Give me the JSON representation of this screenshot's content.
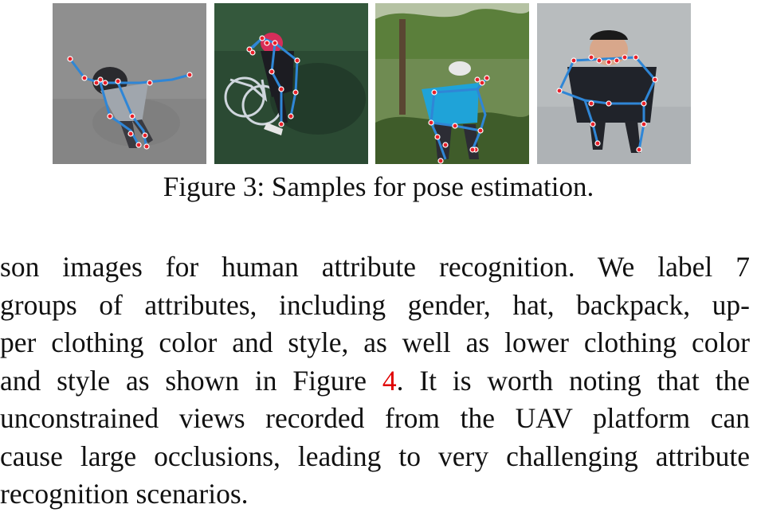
{
  "figure": {
    "label": "Figure 3:",
    "caption": "Samples for pose estimation."
  },
  "paragraph": {
    "line1": "son images for human attribute recognition.  We label 7",
    "line2": "groups of attributes, including gender, hat, backpack, up-",
    "line3": "per clothing color and style, as well as lower clothing color",
    "line4_before": "and style as shown in Figure ",
    "line4_ref": "4",
    "line4_after": ".  It is worth noting that the",
    "line5": "unconstrained views recorded from the UAV platform can",
    "line6": "cause large occlusions, leading to very challenging attribute",
    "line7": "recognition scenarios."
  },
  "colors": {
    "skeleton_line": "#2f86d6",
    "keypoint": "#e8202a",
    "reference_link": "#e00000"
  }
}
